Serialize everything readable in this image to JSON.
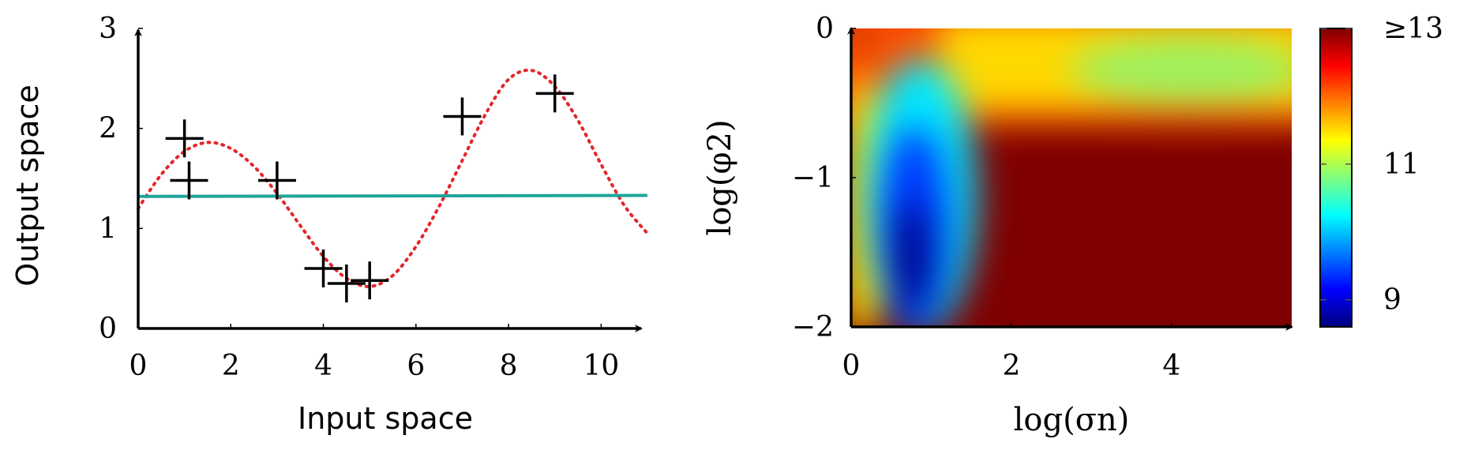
{
  "chart_data": [
    {
      "type": "scatter",
      "xlabel": "Input space",
      "ylabel": "Output space",
      "xlim": [
        0,
        11
      ],
      "ylim": [
        0,
        3
      ],
      "xticks": [
        "0",
        "2",
        "4",
        "6",
        "8",
        "10"
      ],
      "yticks": [
        "0",
        "1",
        "2",
        "3"
      ],
      "grid": false,
      "series": [
        {
          "kind": "markers",
          "marker": "plus",
          "color": "#000000",
          "x": [
            1,
            1.1,
            3,
            4,
            4.5,
            5,
            7,
            9
          ],
          "y": [
            1.9,
            1.48,
            1.48,
            0.6,
            0.45,
            0.48,
            2.12,
            2.35
          ]
        },
        {
          "kind": "line",
          "style": "dotted",
          "color": "#e3262b",
          "x": [
            0,
            0.5,
            1,
            1.5,
            2,
            2.5,
            3,
            3.5,
            4,
            4.5,
            5,
            5.5,
            6,
            6.5,
            7,
            7.5,
            8,
            8.5,
            9,
            9.5,
            10,
            10.5,
            11
          ],
          "y": [
            1.2,
            1.54,
            1.77,
            1.86,
            1.8,
            1.62,
            1.35,
            1.03,
            0.72,
            0.5,
            0.42,
            0.53,
            0.82,
            1.22,
            1.68,
            2.14,
            2.49,
            2.58,
            2.42,
            2.08,
            1.64,
            1.23,
            0.95
          ]
        },
        {
          "kind": "line",
          "style": "solid",
          "color": "#1fa59c",
          "x": [
            0,
            11
          ],
          "y": [
            1.32,
            1.33
          ]
        }
      ]
    },
    {
      "type": "heatmap",
      "xlabel": "log(σn)",
      "ylabel": "log(φ2)",
      "xlim": [
        0,
        5.5
      ],
      "ylim": [
        -2,
        0
      ],
      "xticks": [
        "0",
        "2",
        "4"
      ],
      "yticks": [
        "−2",
        "−1",
        "0"
      ],
      "colormap": "jet",
      "colorbar": {
        "range": [
          8.6,
          13
        ],
        "ticks": [
          "9",
          "11",
          "≥13"
        ]
      }
    }
  ]
}
